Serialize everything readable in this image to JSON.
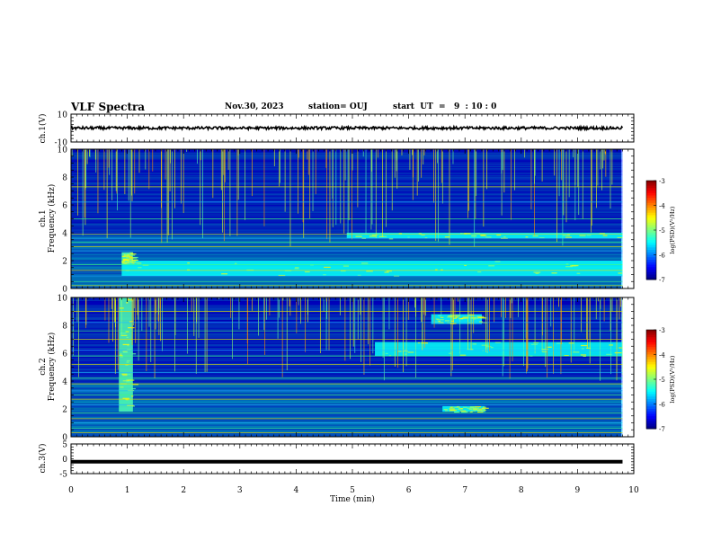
{
  "header": {
    "title": "VLF Spectra",
    "date": "Nov.30, 2023",
    "station": "station= OUJ",
    "start": "start  UT  =   9  : 10 : 0"
  },
  "chart_data": [
    {
      "type": "line",
      "panel": "ch1_waveform",
      "ylabel": "ch.1(V)",
      "ylim": [
        -10,
        10
      ],
      "ytick_labels": [
        "10",
        "-10"
      ],
      "x_range_min": [
        0,
        9.8
      ],
      "level": 0,
      "amplitude": 1.0
    },
    {
      "type": "heatmap",
      "panel": "ch1_spectrogram",
      "ylabel": "ch.1  Frequency (kHz)",
      "ylim": [
        0,
        10
      ],
      "ytick_labels": [
        "0",
        "2",
        "4",
        "6",
        "8",
        "10"
      ],
      "x_range_min": [
        0,
        9.8
      ],
      "colorbar": {
        "label": "log(PSD)(V²/Hz)",
        "range": [
          -7,
          -3
        ],
        "tick_labels": [
          "-3",
          "-4",
          "-5",
          "-6",
          "-7"
        ],
        "colormap": "jet"
      },
      "features": [
        {
          "name": "narrowband lines",
          "freqs_khz": [
            0.2,
            0.5,
            0.9,
            1.3,
            1.7,
            2.7,
            3.0,
            3.3,
            3.6,
            3.9,
            5.0,
            6.2,
            7.3
          ]
        },
        {
          "name": "band 0.9-2 kHz",
          "t_min": [
            0.9,
            9.8
          ],
          "f_khz": [
            0.9,
            2.0
          ]
        },
        {
          "name": "enhanced 3.6-4 kHz",
          "t_min": [
            4.9,
            9.8
          ],
          "f_khz": [
            3.6,
            4.0
          ]
        },
        {
          "name": "burst",
          "t_min": [
            0.9,
            1.1
          ],
          "f_khz": [
            1.8,
            2.6
          ]
        }
      ]
    },
    {
      "type": "heatmap",
      "panel": "ch2_spectrogram",
      "ylabel": "ch.2  Frequency (kHz)",
      "ylim": [
        0,
        10
      ],
      "ytick_labels": [
        "0",
        "2",
        "4",
        "6",
        "8",
        "10"
      ],
      "x_range_min": [
        0,
        9.8
      ],
      "colorbar": {
        "label": "log(PSD)(V²/Hz)",
        "range": [
          -7,
          -3
        ],
        "tick_labels": [
          "-3",
          "-4",
          "-5",
          "-6",
          "-7"
        ],
        "colormap": "jet"
      },
      "features": [
        {
          "name": "emission band ~6.2 kHz",
          "t_min": [
            5.4,
            9.8
          ],
          "f_khz": [
            5.8,
            6.8
          ]
        },
        {
          "name": "emission ~8.4 kHz",
          "t_min": [
            6.4,
            7.3
          ],
          "f_khz": [
            8.1,
            8.8
          ]
        },
        {
          "name": "emission ~2 kHz",
          "t_min": [
            6.6,
            7.35
          ],
          "f_khz": [
            1.8,
            2.2
          ]
        },
        {
          "name": "broadband burst",
          "t_min": [
            0.85,
            1.1
          ],
          "f_khz": [
            1.8,
            10
          ]
        }
      ]
    },
    {
      "type": "line",
      "panel": "ch3_waveform",
      "ylabel": "ch.3(V)",
      "ylim": [
        -5,
        5
      ],
      "ytick_labels": [
        "5",
        "0",
        "-5"
      ],
      "x_range_min": [
        0,
        9.8
      ],
      "level": -1.0,
      "xlabel": "Time  (min)",
      "xlim": [
        0,
        10
      ],
      "xtick_labels": [
        "0",
        "1",
        "2",
        "3",
        "4",
        "5",
        "6",
        "7",
        "8",
        "9",
        "10"
      ]
    }
  ]
}
